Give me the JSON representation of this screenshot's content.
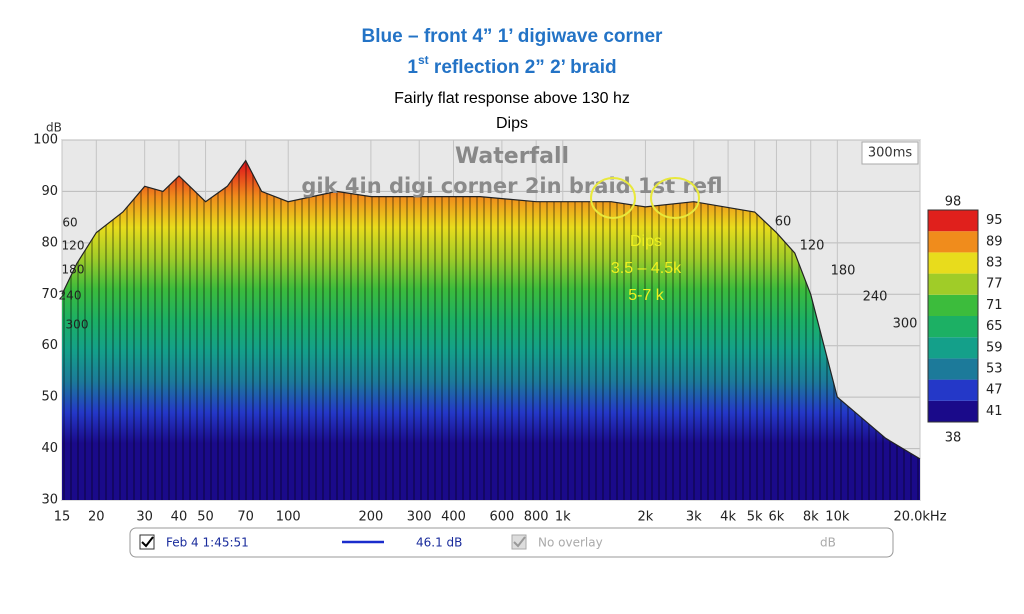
{
  "header": {
    "line1": "Blue – front 4” 1’ digiwave corner",
    "line2": {
      "number": "1",
      "suffix": "st",
      "rest": " reflection 2” 2’ braid"
    },
    "line3": "Fairly flat response above 130 hz",
    "line4": "Dips"
  },
  "chart_data": {
    "type": "waterfall",
    "title": "Waterfall",
    "subtitle": "gik 4in digi corner 2in braid 1st refl",
    "time_span": "300ms",
    "ylabel": "dB",
    "x": [
      15,
      17,
      20,
      25,
      30,
      35,
      40,
      50,
      60,
      70,
      80,
      100,
      150,
      200,
      300,
      500,
      800,
      1000,
      1500,
      2000,
      3000,
      5000,
      6000,
      7000,
      8000,
      10000,
      15000,
      20000
    ],
    "values": [
      70,
      76,
      82,
      86,
      91,
      90,
      93,
      88,
      91,
      96,
      90,
      88,
      90,
      89,
      89,
      89,
      88,
      88,
      88,
      87,
      88,
      86,
      82,
      78,
      70,
      50,
      42,
      38
    ],
    "xlim": [
      15,
      20000
    ],
    "ylim": [
      30,
      100
    ],
    "log_x": true,
    "grid": true,
    "xticks": [
      15,
      20,
      30,
      40,
      50,
      70,
      100,
      200,
      300,
      400,
      600,
      800,
      {
        "value": 1000,
        "label": "1k"
      },
      {
        "value": 2000,
        "label": "2k"
      },
      {
        "value": 3000,
        "label": "3k"
      },
      {
        "value": 4000,
        "label": "4k"
      },
      {
        "value": 5000,
        "label": "5k"
      },
      {
        "value": 6000,
        "label": "6k"
      },
      {
        "value": 8000,
        "label": "8k"
      },
      {
        "value": 10000,
        "label": "10k"
      },
      {
        "value": 20000,
        "label": "20.0kHz"
      }
    ],
    "yticks": [
      30,
      40,
      50,
      60,
      70,
      80,
      90,
      100
    ],
    "time_labels": [
      60,
      120,
      180,
      240,
      300
    ],
    "annotation": {
      "title": "Dips",
      "line1": "3.5 – 4.5k",
      "line2": "5-7 k"
    },
    "colorbar": {
      "min": 38,
      "max": 98,
      "ticks": [
        41,
        47,
        53,
        59,
        65,
        71,
        77,
        83,
        89,
        95
      ],
      "colors": [
        "#1a0a8a",
        "#2438c8",
        "#1c7a9a",
        "#14a08a",
        "#1cb064",
        "#3cbc3c",
        "#a0cc28",
        "#e8dc1c",
        "#f08c1c",
        "#e0201c"
      ]
    },
    "legend": {
      "date": "Feb 4 1:45:51",
      "level": "46.1 dB",
      "overlay": "No overlay",
      "unit": "dB",
      "color": "#1a2ccc"
    }
  }
}
